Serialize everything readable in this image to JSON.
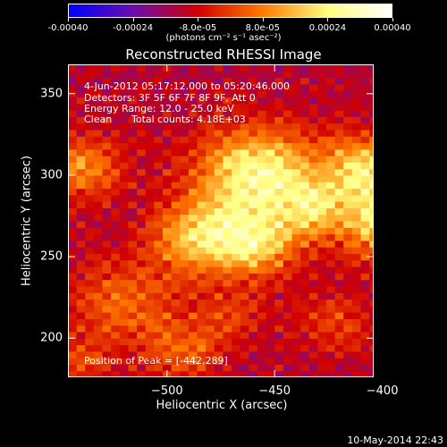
{
  "colorbar": {
    "ticks": [
      "-0.00040",
      "-0.00024",
      "-8.0e-05",
      "8.0e-05",
      "0.00024",
      "0.00040"
    ],
    "unit": "(photons cm⁻² s⁻¹ asec⁻²)",
    "colors": [
      "#0000ff",
      "#6a0dad",
      "#d00000",
      "#ff7a00",
      "#ffff80",
      "#ffffff"
    ]
  },
  "chart_data": {
    "type": "heatmap",
    "title": "Reconstructed RHESSI Image",
    "xlabel": "Heliocentric X (arcsec)",
    "ylabel": "Heliocentric Y (arcsec)",
    "xlim": [
      -546,
      -404
    ],
    "ylim": [
      176,
      368
    ],
    "x_ticks": [
      -500,
      -450,
      -400
    ],
    "x_tick_labels": [
      "−500",
      "−450",
      "−400"
    ],
    "y_ticks": [
      200,
      250,
      300,
      350
    ],
    "y_tick_labels": [
      "200",
      "250",
      "300",
      "350"
    ],
    "zlim": [
      -0.0004,
      0.0004
    ],
    "annotations": {
      "time": "4-Jun-2012 05:17:12.000 to 05:20:46.000",
      "detectors": "Detectors: 3F 5F 6F 7F 8F 9F, Att 0",
      "energy": "Energy Range: 12.0 - 25.0 keV",
      "method": "Clean",
      "counts": "Total counts: 4.18E+03",
      "peak": "Position of Peak = [-442,289]"
    },
    "peak": [
      -442,
      289
    ],
    "sources": [
      {
        "x": -458,
        "y": 300,
        "sigma": 20,
        "amp": 0.0004
      },
      {
        "x": -485,
        "y": 262,
        "sigma": 15,
        "amp": 0.0003
      },
      {
        "x": -458,
        "y": 258,
        "sigma": 14,
        "amp": 0.00028
      },
      {
        "x": -398,
        "y": 272,
        "sigma": 16,
        "amp": 0.00034
      },
      {
        "x": -408,
        "y": 305,
        "sigma": 14,
        "amp": 0.0003
      },
      {
        "x": -432,
        "y": 280,
        "sigma": 11,
        "amp": 0.0002
      },
      {
        "x": -540,
        "y": 305,
        "sigma": 14,
        "amp": 0.00022
      },
      {
        "x": -520,
        "y": 222,
        "sigma": 18,
        "amp": 0.00018
      },
      {
        "x": -492,
        "y": 192,
        "sigma": 13,
        "amp": 0.00016
      },
      {
        "x": -422,
        "y": 210,
        "sigma": 13,
        "amp": 0.00012
      },
      {
        "x": -470,
        "y": 215,
        "sigma": 12,
        "amp": 0.0001
      },
      {
        "x": -540,
        "y": 185,
        "sigma": 10,
        "amp": 0.00012
      }
    ]
  },
  "footer": {
    "timestamp": "10-May-2014 22:43"
  }
}
